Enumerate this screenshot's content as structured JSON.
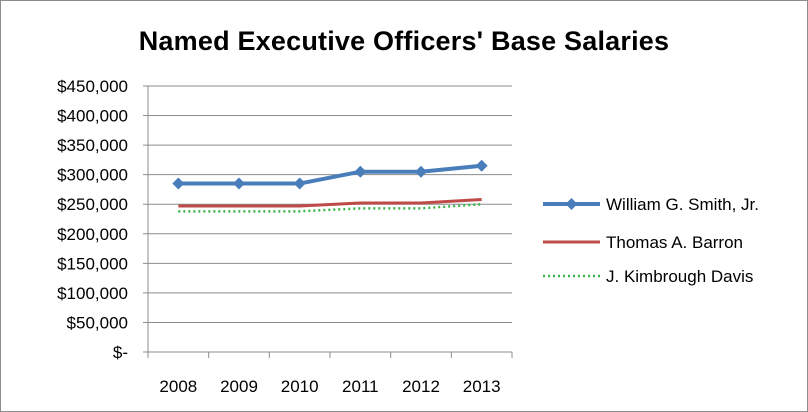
{
  "chart_data": {
    "type": "line",
    "title": "Named Executive Officers' Base Salaries",
    "xlabel": "",
    "ylabel": "",
    "categories": [
      "2008",
      "2009",
      "2010",
      "2011",
      "2012",
      "2013"
    ],
    "ylim": [
      0,
      450000
    ],
    "yticks": [
      0,
      50000,
      100000,
      150000,
      200000,
      250000,
      300000,
      350000,
      400000,
      450000
    ],
    "ytick_labels": [
      "$-",
      "$50,000",
      "$100,000",
      "$150,000",
      "$200,000",
      "$250,000",
      "$300,000",
      "$350,000",
      "$400,000",
      "$450,000"
    ],
    "grid": true,
    "legend_position": "right",
    "series": [
      {
        "name": "William G. Smith, Jr.",
        "values": [
          285000,
          285000,
          285000,
          305000,
          305000,
          315000
        ],
        "color": "#4a7ebb",
        "style": "solid",
        "marker": "diamond"
      },
      {
        "name": "Thomas A. Barron",
        "values": [
          247000,
          247000,
          247000,
          252000,
          252000,
          258000
        ],
        "color": "#be4b48",
        "style": "solid",
        "marker": "none"
      },
      {
        "name": "J. Kimbrough Davis",
        "values": [
          238000,
          238000,
          238000,
          243000,
          243000,
          250000
        ],
        "color": "#3cb54a",
        "style": "dotted",
        "marker": "none"
      }
    ]
  }
}
